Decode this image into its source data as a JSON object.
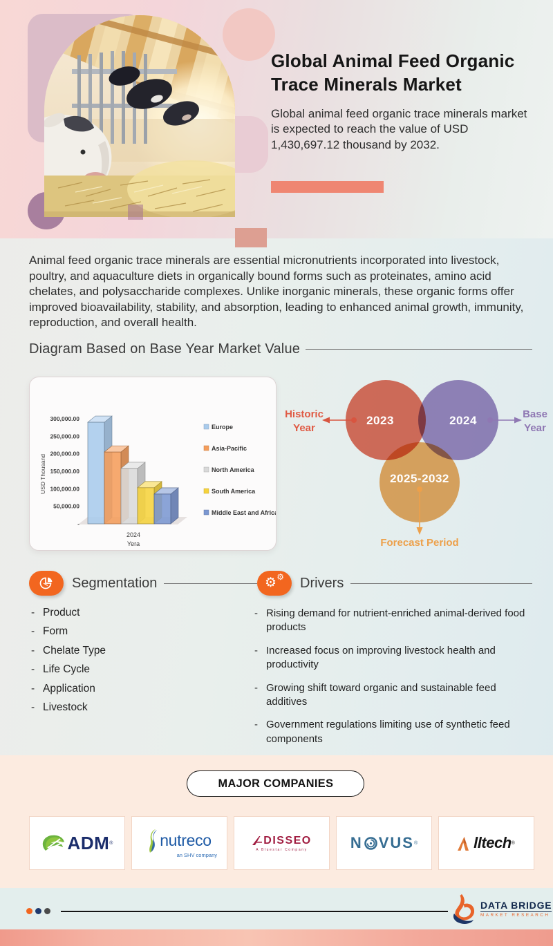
{
  "hero": {
    "title": "Global Animal Feed Organic Trace Minerals Market",
    "subtitle": "Global animal feed organic trace minerals market is expected to reach the value of USD 1,430,697.12 thousand by 2032.",
    "accent_color": "#ef8672"
  },
  "intro": "Animal feed organic trace minerals are essential micronutrients incorporated into livestock, poultry, and aquaculture diets in organically bound forms such as proteinates, amino acid chelates, and polysaccharide complexes. Unlike inorganic minerals, these organic forms offer improved bioavailability, stability, and absorption, leading to enhanced animal growth, immunity, reproduction, and overall health.",
  "diagram": {
    "heading": "Diagram Based on Base Year Market Value"
  },
  "chart_data": {
    "type": "bar",
    "style": "3d",
    "categories": [
      "2024"
    ],
    "xlabel": "Yera",
    "ylabel": "USD Thousand",
    "ylim": [
      0,
      300000
    ],
    "ytick_step": 50000,
    "yticks": [
      "300,000.00",
      "250,000.00",
      "200,000.00",
      "150,000.00",
      "100,000.00",
      "50,000.00",
      "-"
    ],
    "grid": false,
    "legend_position": "right",
    "series": [
      {
        "name": "Europe",
        "values": [
          290000
        ],
        "color": "#a9cbec"
      },
      {
        "name": "Asia-Pacific",
        "values": [
          205000
        ],
        "color": "#f59d5b"
      },
      {
        "name": "North America",
        "values": [
          158000
        ],
        "color": "#d9d9d9"
      },
      {
        "name": "South America",
        "values": [
          103000
        ],
        "color": "#f6d33c"
      },
      {
        "name": "Middle East and Africa",
        "values": [
          85000
        ],
        "color": "#7b97d1"
      }
    ]
  },
  "venn": {
    "historic": {
      "circle_label": "2023",
      "label_lines": [
        "Historic",
        "Year"
      ],
      "color": "#e26550",
      "label_color": "#e05a44"
    },
    "base": {
      "circle_label": "2024",
      "label_lines": [
        "Base",
        "Year"
      ],
      "color": "#9680bd",
      "label_color": "#8f78b3"
    },
    "forecast": {
      "circle_label": "2025-2032",
      "label_lines": [
        "Forecast Period"
      ],
      "color": "#eda557",
      "label_color": "#eda04a"
    }
  },
  "segmentation": {
    "title": "Segmentation",
    "items": [
      "Product",
      "Form",
      "Chelate Type",
      "Life Cycle",
      "Application",
      "Livestock"
    ]
  },
  "drivers": {
    "title": "Drivers",
    "items": [
      "Rising demand for nutrient-enriched animal-derived food products",
      "Increased focus on improving livestock health and productivity",
      "Growing shift toward organic and sustainable feed additives",
      "Government regulations limiting use of synthetic feed components"
    ]
  },
  "companies": {
    "heading": "MAJOR COMPANIES",
    "logos": [
      {
        "name": "ADM",
        "mark": "adm-leaf-icon"
      },
      {
        "name": "nutreco",
        "sub": "an SHV company",
        "mark": "nutreco-swoosh-icon"
      },
      {
        "name": "ADISSEO",
        "after_mark": "DISSEO",
        "sub": "A Bluestar Company",
        "mark": "adisseo-a-icon"
      },
      {
        "name": "NOVUS",
        "left": "N",
        "right": "VUS",
        "mark": "novus-ring-icon"
      },
      {
        "name": "Alltech",
        "after_mark": "lltech",
        "mark": "alltech-a-icon"
      }
    ]
  },
  "footer": {
    "brand": "DATA BRIDGE",
    "brand_sub": "MARKET RESEARCH"
  },
  "colors": {
    "section_orange": "#f2661f",
    "companies_bg": "#fcebe0",
    "bottom_strip": "#f3a99b"
  }
}
